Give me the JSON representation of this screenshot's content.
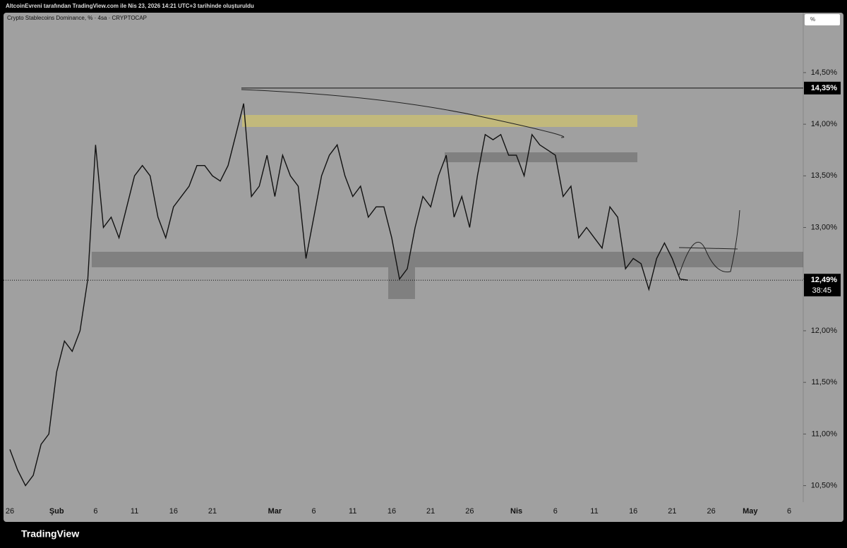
{
  "header": "AltcoinEvreni tarafından TradingView.com ile Nis 23, 2026 14:21 UTC+3 tarihinde oluşturuldu",
  "brand": "TradingView",
  "scale_button": "%",
  "chart_data": {
    "type": "line",
    "title": "Crypto Stablecoins Dominance, % · 4sa · CRYPTOCAP",
    "categories": [
      "26",
      null,
      null,
      null,
      null,
      null,
      "Şub",
      null,
      null,
      null,
      null,
      "6",
      null,
      null,
      null,
      null,
      "11",
      null,
      null,
      null,
      null,
      "16",
      null,
      null,
      null,
      null,
      "21",
      null,
      null,
      null,
      null,
      null,
      null,
      null,
      "Mar",
      null,
      null,
      null,
      null,
      "6",
      null,
      null,
      null,
      null,
      "11",
      null,
      null,
      null,
      null,
      "16",
      null,
      null,
      null,
      null,
      "21",
      null,
      null,
      null,
      null,
      "26",
      null,
      null,
      null,
      null,
      null,
      "Nis",
      null,
      null,
      null,
      null,
      "6",
      null,
      null,
      null,
      null,
      "11",
      null,
      null,
      null,
      null,
      "16",
      null,
      null,
      null,
      null,
      "21",
      null,
      null,
      null,
      null,
      "26",
      null,
      null,
      null,
      null,
      "May",
      null,
      null,
      null,
      null,
      "6"
    ],
    "series": [
      {
        "color": "#111111",
        "values": [
          10.85,
          10.65,
          10.5,
          10.6,
          10.9,
          11.0,
          11.6,
          11.9,
          11.8,
          12.0,
          12.5,
          13.8,
          13.0,
          13.1,
          12.9,
          13.2,
          13.5,
          13.6,
          13.5,
          13.1,
          12.9,
          13.2,
          13.3,
          13.4,
          13.6,
          13.6,
          13.5,
          13.45,
          13.6,
          13.9,
          14.2,
          13.3,
          13.4,
          13.7,
          13.3,
          13.7,
          13.5,
          13.4,
          12.7,
          13.1,
          13.5,
          13.7,
          13.8,
          13.5,
          13.3,
          13.4,
          13.1,
          13.2,
          13.2,
          12.9,
          12.5,
          12.6,
          13.0,
          13.3,
          13.2,
          13.5,
          13.7,
          13.1,
          13.3,
          13.0,
          13.5,
          13.9,
          13.85,
          13.9,
          13.7,
          13.7,
          13.5,
          13.9,
          13.8,
          13.75,
          13.7,
          13.3,
          13.4,
          12.9,
          13.0,
          12.9,
          12.8,
          13.2,
          13.1,
          12.6,
          12.7,
          12.65,
          12.4,
          12.7,
          12.85,
          12.7,
          12.5,
          12.49,
          null,
          null,
          null,
          null,
          null,
          null,
          null,
          null,
          null,
          null,
          null,
          null,
          null
        ]
      }
    ],
    "ylim": [
      10.34,
      15.08
    ],
    "yticks": [
      {
        "value": 10.5,
        "label": "10,50%"
      },
      {
        "value": 11,
        "label": "11,00%"
      },
      {
        "value": 11.5,
        "label": "11,50%"
      },
      {
        "value": 12,
        "label": "12,00%"
      },
      {
        "value": 12.5,
        "label": "12,50%"
      },
      {
        "value": 13,
        "label": "13,00%"
      },
      {
        "value": 13.5,
        "label": "13,50%"
      },
      {
        "value": 14,
        "label": "14,00%"
      },
      {
        "value": 14.5,
        "label": "14,50%"
      }
    ],
    "price_lines": [
      {
        "value": 14.35,
        "label": "14,35%"
      },
      {
        "value": 12.49,
        "label": "12,49%"
      }
    ],
    "countdown": "38:45"
  }
}
